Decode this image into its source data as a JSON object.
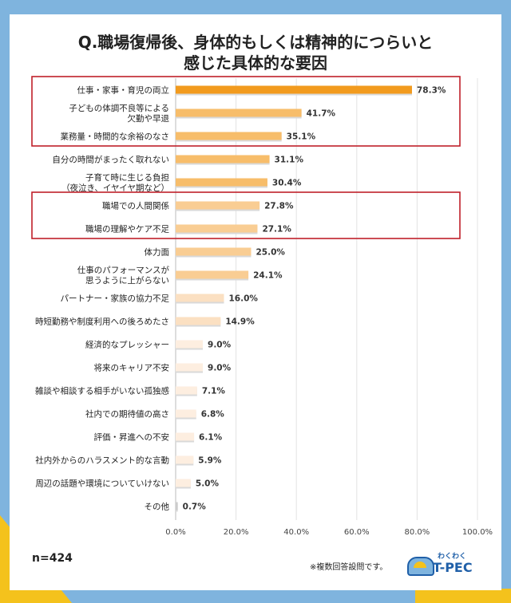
{
  "title_lines": [
    "Q.職場復帰後、身体的もしくは精神的につらいと",
    "感じた具体的な要因"
  ],
  "n_label": "n=424",
  "note": "※複数回答設問です。",
  "logo": {
    "top": "わくわく",
    "main": "T-PEC"
  },
  "colors": {
    "accent": "#f29b1e",
    "mid": "#f7bd6a",
    "light": "#fbe0c2",
    "lighter": "#fdeee0",
    "gray": "#cccccc",
    "highlight": "#c0202a",
    "grid": "#e3e3e3"
  },
  "chart_data": {
    "type": "bar",
    "orientation": "horizontal",
    "categories": [
      [
        "仕事・家事・育児の両立"
      ],
      [
        "子どもの体調不良等による",
        "欠勤や早退"
      ],
      [
        "業務量・時間的な余裕のなさ"
      ],
      [
        "自分の時間がまったく取れない"
      ],
      [
        "子育て時に生じる負担",
        "（夜泣き、イヤイヤ期など）"
      ],
      [
        "職場での人間関係"
      ],
      [
        "職場の理解やケア不足"
      ],
      [
        "体力面"
      ],
      [
        "仕事のパフォーマンスが",
        "思うように上がらない"
      ],
      [
        "パートナー・家族の協力不足"
      ],
      [
        "時短勤務や制度利用への後ろめたさ"
      ],
      [
        "経済的なプレッシャー"
      ],
      [
        "将来のキャリア不安"
      ],
      [
        "雑談や相談する相手がいない孤独感"
      ],
      [
        "社内での期待値の高さ"
      ],
      [
        "評価・昇進への不安"
      ],
      [
        "社内外からのハラスメント的な言動"
      ],
      [
        "周辺の話題や環境についていけない"
      ],
      [
        "その他"
      ]
    ],
    "values": [
      78.3,
      41.7,
      35.1,
      31.1,
      30.4,
      27.8,
      27.1,
      25.0,
      24.1,
      16.0,
      14.9,
      9.0,
      9.0,
      7.1,
      6.8,
      6.1,
      5.9,
      5.0,
      0.7
    ],
    "value_labels": [
      "78.3%",
      "41.7%",
      "35.1%",
      "31.1%",
      "30.4%",
      "27.8%",
      "27.1%",
      "25.0%",
      "24.1%",
      "16.0%",
      "14.9%",
      "9.0%",
      "9.0%",
      "7.1%",
      "6.8%",
      "6.1%",
      "5.9%",
      "5.0%",
      "0.7%"
    ],
    "x_ticks": [
      "0.0%",
      "20.0%",
      "40.0%",
      "60.0%",
      "80.0%",
      "100.0%"
    ],
    "xlim": [
      0,
      100
    ],
    "highlight_groups": [
      [
        0,
        2
      ],
      [
        5,
        6
      ]
    ],
    "grid": true
  }
}
